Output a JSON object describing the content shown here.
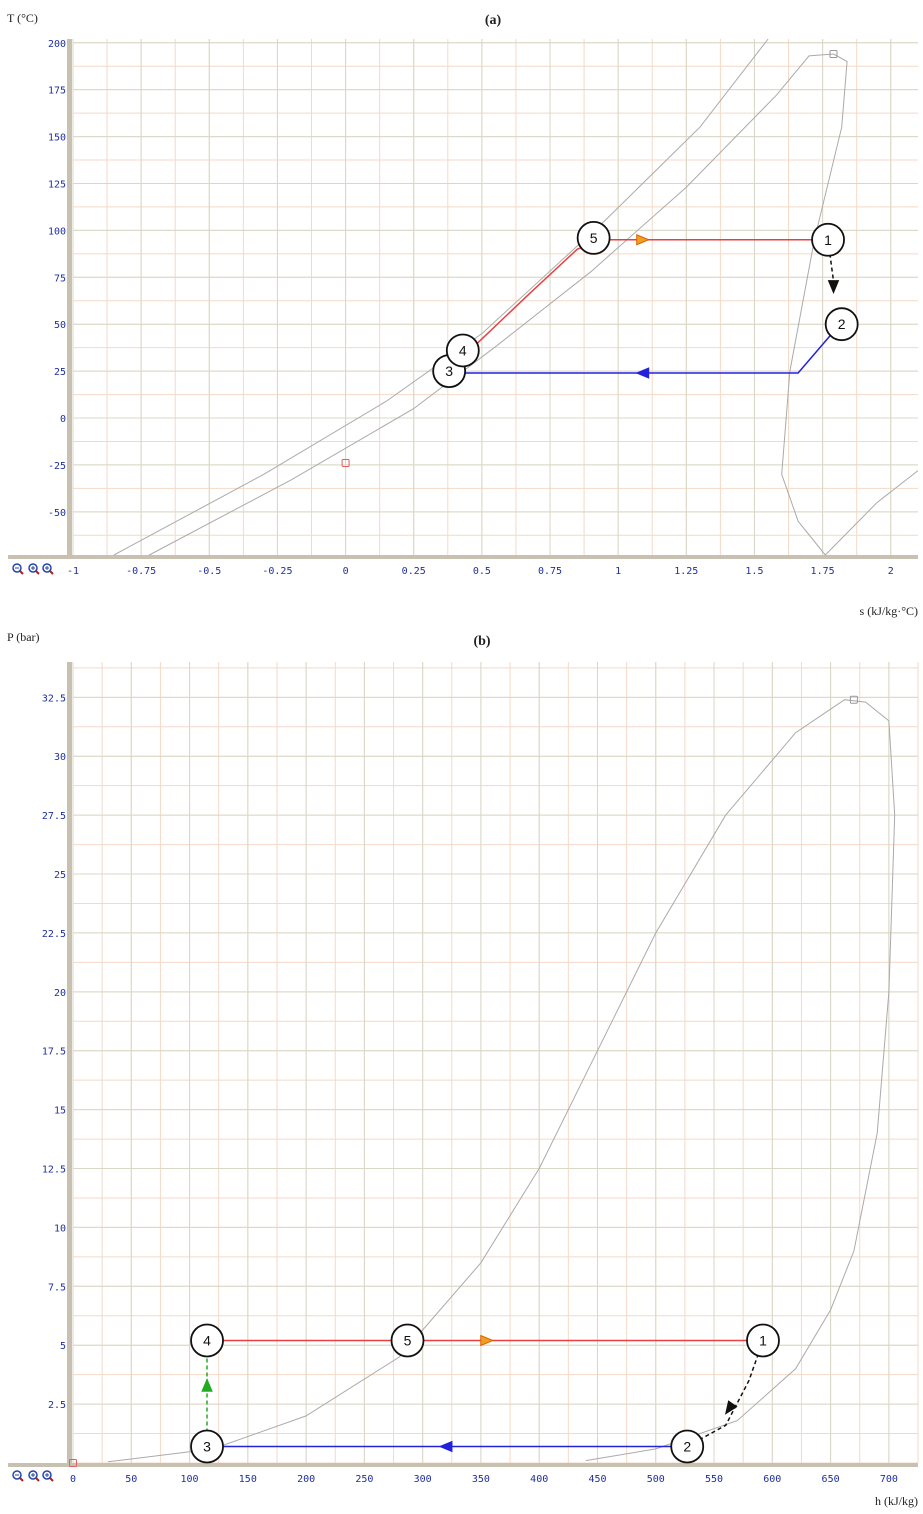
{
  "panels": [
    {
      "id": "a",
      "title": "(a)",
      "xlabel": "s (kJ/kg·°C)",
      "ylabel": "T (°C)",
      "chart_data": {
        "type": "line",
        "xlim": [
          -1,
          2.1
        ],
        "ylim": [
          -73,
          202
        ],
        "x_ticks": [
          -1,
          -0.75,
          -0.5,
          -0.25,
          0,
          0.25,
          0.5,
          0.75,
          1,
          1.25,
          1.5,
          1.75,
          2
        ],
        "x_tick_labels": [
          "-1",
          "-0.75",
          "-0.5",
          "-0.25",
          "0",
          "0.25",
          "0.5",
          "0.75",
          "1",
          "1.25",
          "1.5",
          "1.75",
          "2"
        ],
        "y_ticks": [
          -50,
          -25,
          0,
          25,
          50,
          75,
          100,
          125,
          150,
          175,
          200
        ],
        "y_tick_labels": [
          "-50",
          "-25",
          "0",
          "25",
          "50",
          "75",
          "100",
          "125",
          "150",
          "175",
          "200"
        ],
        "grid": true,
        "series": [
          {
            "color": "#aaaaaa",
            "style": "solid",
            "points": [
              [
                -0.72,
                -73
              ],
              [
                -0.2,
                -33
              ],
              [
                0.25,
                5
              ],
              [
                0.55,
                38
              ],
              [
                0.9,
                78
              ],
              [
                1.25,
                123
              ],
              [
                1.58,
                172
              ],
              [
                1.7,
                193
              ],
              [
                1.79,
                194
              ],
              [
                1.84,
                190
              ],
              [
                1.82,
                155
              ],
              [
                1.72,
                95
              ],
              [
                1.63,
                25
              ],
              [
                1.6,
                -30
              ],
              [
                1.66,
                -55
              ],
              [
                1.76,
                -73
              ]
            ]
          },
          {
            "color": "#aaaaaa",
            "style": "solid",
            "points": [
              [
                -0.85,
                -73
              ],
              [
                -0.3,
                -30
              ],
              [
                0.15,
                9
              ],
              [
                0.5,
                45
              ],
              [
                0.95,
                105
              ],
              [
                1.3,
                155
              ],
              [
                1.55,
                202
              ]
            ]
          },
          {
            "color": "#aaaaaa",
            "style": "solid",
            "points": [
              [
                1.76,
                -73
              ],
              [
                1.95,
                -45
              ],
              [
                2.1,
                -28
              ]
            ]
          },
          {
            "color": "#e84040",
            "style": "solid",
            "points": [
              [
                0.47,
                38
              ],
              [
                0.68,
                67
              ],
              [
                0.85,
                90
              ],
              [
                0.95,
                95
              ],
              [
                1.77,
                95
              ]
            ]
          },
          {
            "color": "#2222dd",
            "style": "solid",
            "points": [
              [
                1.79,
                46
              ],
              [
                1.66,
                24
              ],
              [
                0.42,
                24
              ]
            ]
          },
          {
            "color": "#111111",
            "style": "dashed",
            "points": [
              [
                1.77,
                95
              ],
              [
                1.79,
                73
              ]
            ]
          }
        ],
        "markers": [
          {
            "label": "1",
            "x": 1.77,
            "y": 95
          },
          {
            "label": "2",
            "x": 1.82,
            "y": 50
          },
          {
            "label": "3",
            "x": 0.38,
            "y": 25
          },
          {
            "label": "4",
            "x": 0.43,
            "y": 36
          },
          {
            "label": "5",
            "x": 0.91,
            "y": 96
          }
        ],
        "arrows": [
          {
            "x": 1.09,
            "y": 95,
            "dir": "right",
            "color": "#f0a020"
          },
          {
            "x": 1.09,
            "y": 24,
            "dir": "left",
            "color": "#2222dd"
          },
          {
            "x": 1.79,
            "y": 70,
            "dir": "down",
            "color": "#111111"
          }
        ],
        "small_points": [
          {
            "x": 0,
            "y": -24,
            "color": "#e06060"
          },
          {
            "x": 1.79,
            "y": 194,
            "color": "#999999"
          }
        ]
      }
    },
    {
      "id": "b",
      "title": "(b)",
      "xlabel": "h (kJ/kg)",
      "ylabel": "P (bar)",
      "chart_data": {
        "type": "line",
        "xlim": [
          0,
          725
        ],
        "ylim": [
          0,
          34
        ],
        "x_ticks": [
          0,
          50,
          100,
          150,
          200,
          250,
          300,
          350,
          400,
          450,
          500,
          550,
          600,
          650,
          700
        ],
        "x_tick_labels": [
          "0",
          "50",
          "100",
          "150",
          "200",
          "250",
          "300",
          "350",
          "400",
          "450",
          "500",
          "550",
          "600",
          "650",
          "700"
        ],
        "y_ticks": [
          2.5,
          5,
          7.5,
          10,
          12.5,
          15,
          17.5,
          20,
          22.5,
          25,
          27.5,
          30,
          32.5
        ],
        "y_tick_labels": [
          "2.5",
          "5",
          "7.5",
          "10",
          "12.5",
          "15",
          "17.5",
          "20",
          "22.5",
          "25",
          "27.5",
          "30",
          "32.5"
        ],
        "grid": true,
        "series": [
          {
            "color": "#aaaaaa",
            "style": "solid",
            "points": [
              [
                30,
                0.05
              ],
              [
                120,
                0.6
              ],
              [
                200,
                2
              ],
              [
                280,
                4.5
              ],
              [
                350,
                8.5
              ],
              [
                400,
                12.5
              ],
              [
                450,
                17.5
              ],
              [
                500,
                22.5
              ],
              [
                560,
                27.5
              ],
              [
                620,
                31
              ],
              [
                662,
                32.4
              ],
              [
                680,
                32.3
              ],
              [
                700,
                31.5
              ],
              [
                705,
                27.5
              ],
              [
                700,
                20
              ],
              [
                690,
                14
              ],
              [
                670,
                9
              ],
              [
                650,
                6.5
              ],
              [
                620,
                4
              ],
              [
                570,
                1.8
              ],
              [
                500,
                0.6
              ],
              [
                440,
                0.1
              ]
            ]
          },
          {
            "color": "#e84040",
            "style": "solid",
            "points": [
              [
                115,
                5.2
              ],
              [
                592,
                5.2
              ]
            ]
          },
          {
            "color": "#2222dd",
            "style": "solid",
            "points": [
              [
                527,
                0.7
              ],
              [
                115,
                0.7
              ]
            ]
          },
          {
            "color": "#22aa22",
            "style": "dashed",
            "points": [
              [
                115,
                0.7
              ],
              [
                115,
                4.5
              ]
            ]
          },
          {
            "color": "#111111",
            "style": "dashed",
            "points": [
              [
                592,
                5.2
              ],
              [
                580,
                3.5
              ],
              [
                560,
                1.6
              ],
              [
                527,
                0.7
              ]
            ]
          }
        ],
        "markers": [
          {
            "label": "1",
            "x": 592,
            "y": 5.2
          },
          {
            "label": "2",
            "x": 527,
            "y": 0.7
          },
          {
            "label": "3",
            "x": 115,
            "y": 0.7
          },
          {
            "label": "4",
            "x": 115,
            "y": 5.2
          },
          {
            "label": "5",
            "x": 287,
            "y": 5.2
          }
        ],
        "arrows": [
          {
            "x": 355,
            "y": 5.2,
            "dir": "right",
            "color": "#f0a020"
          },
          {
            "x": 320,
            "y": 0.7,
            "dir": "left",
            "color": "#2222dd"
          },
          {
            "x": 115,
            "y": 3.3,
            "dir": "up",
            "color": "#22aa22"
          },
          {
            "x": 563,
            "y": 2.3,
            "dir": "downleft",
            "color": "#111111"
          }
        ],
        "small_points": [
          {
            "x": 0,
            "y": 0,
            "color": "#e06060"
          },
          {
            "x": 670,
            "y": 32.4,
            "color": "#999999"
          }
        ]
      }
    }
  ]
}
